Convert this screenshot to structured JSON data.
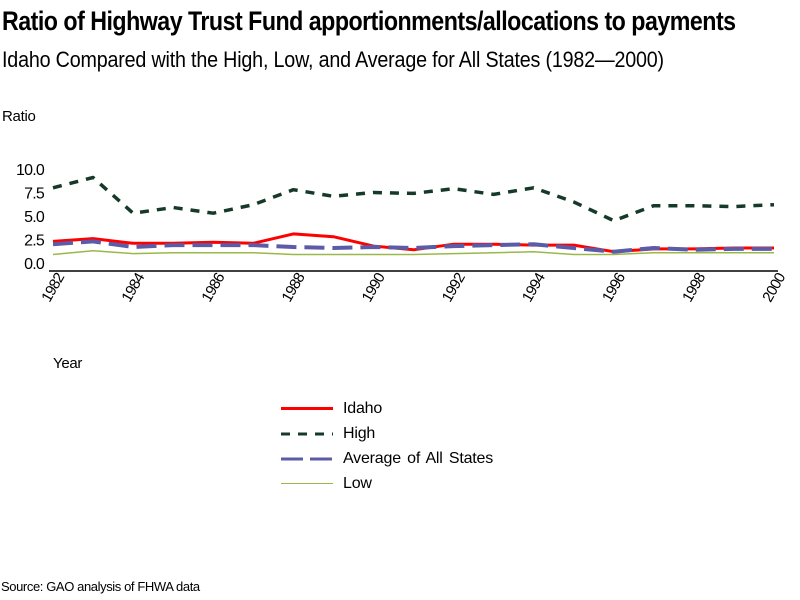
{
  "chart_data": {
    "type": "line",
    "title": "Ratio of Highway Trust Fund apportionments/allocations to payments",
    "subtitle": "Idaho Compared with the High, Low, and Average for All States (1982—2000)",
    "xlabel": "Year",
    "ylabel": "Ratio",
    "ylim": [
      0,
      10
    ],
    "y_ticks": [
      "0.0",
      "2.5",
      "5.0",
      "7.5",
      "10.0"
    ],
    "y_tick_values": [
      0,
      2.5,
      5,
      7.5,
      10
    ],
    "x": [
      1982,
      1983,
      1984,
      1985,
      1986,
      1987,
      1988,
      1989,
      1990,
      1991,
      1992,
      1993,
      1994,
      1995,
      1996,
      1997,
      1998,
      1999,
      2000
    ],
    "x_ticks": [
      "1982",
      "1984",
      "1986",
      "1988",
      "1990",
      "1992",
      "1994",
      "1996",
      "1998",
      "2000"
    ],
    "x_tick_values": [
      1982,
      1984,
      1986,
      1988,
      1990,
      1992,
      1994,
      1996,
      1998,
      2000
    ],
    "grid": false,
    "legend_position": "bottom-center",
    "series": [
      {
        "name": "Idaho",
        "color": "#ff0000",
        "style": "solid",
        "values": [
          2.3,
          2.6,
          2.1,
          2.1,
          2.2,
          2.1,
          3.1,
          2.8,
          1.8,
          1.4,
          2.0,
          2.0,
          1.9,
          1.9,
          1.2,
          1.5,
          1.5,
          1.6,
          1.6
        ]
      },
      {
        "name": "High",
        "color": "#163a28",
        "style": "dotted-dash",
        "values": [
          8.0,
          9.1,
          5.3,
          5.9,
          5.3,
          6.2,
          7.8,
          7.1,
          7.5,
          7.4,
          7.9,
          7.3,
          8.0,
          6.5,
          4.5,
          6.1,
          6.1,
          6.0,
          6.2
        ]
      },
      {
        "name": "Average of All States",
        "color": "#5b5ba8",
        "style": "dashed",
        "values": [
          2.0,
          2.3,
          1.7,
          1.9,
          1.9,
          1.9,
          1.7,
          1.6,
          1.7,
          1.6,
          1.8,
          1.9,
          2.0,
          1.6,
          1.2,
          1.6,
          1.4,
          1.5,
          1.5
        ]
      },
      {
        "name": "Low",
        "color": "#9ab84a",
        "style": "solid-thin",
        "values": [
          0.9,
          1.3,
          1.0,
          1.1,
          1.1,
          1.1,
          0.9,
          0.9,
          0.9,
          0.9,
          1.0,
          1.1,
          1.2,
          0.9,
          0.9,
          1.1,
          1.1,
          1.1,
          1.1
        ]
      }
    ]
  },
  "source": "Source: GAO analysis of FHWA data"
}
